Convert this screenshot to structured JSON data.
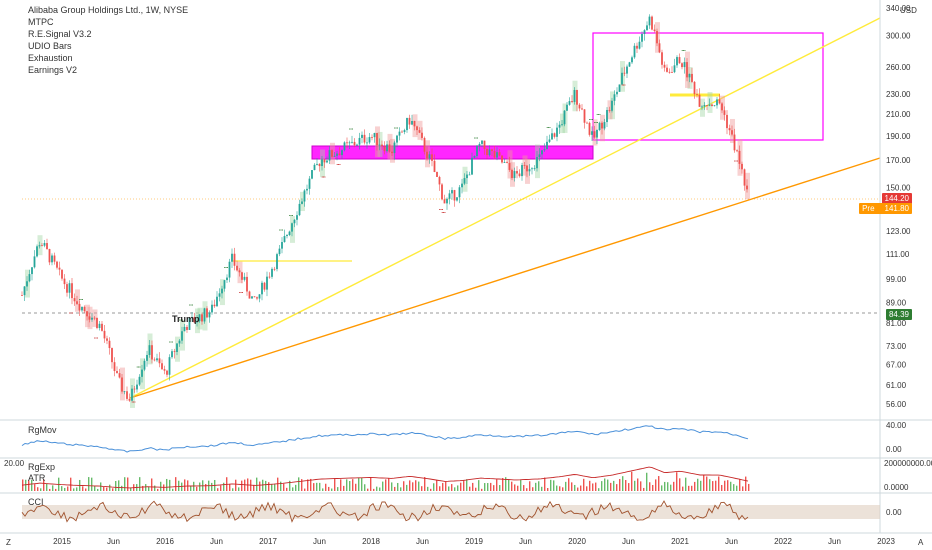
{
  "header": {
    "title": "Alibaba Group Holdings Ltd., 1W, NYSE",
    "currency": "USD",
    "indicators": [
      "MTPC",
      "R.E.Signal V3.2",
      "UDIO Bars",
      "Exhaustion",
      "Earnings V2"
    ]
  },
  "chart_data": {
    "type": "candlestick",
    "title": "Alibaba Group Holdings Ltd., 1W, NYSE",
    "y_scale": "log",
    "y_ticks": [
      340.0,
      300.0,
      260.0,
      230.0,
      210.0,
      190.0,
      170.0,
      150.0,
      123.0,
      111.0,
      99.0,
      89.0,
      81.0,
      73.0,
      67.0,
      61.0,
      56.0
    ],
    "x_ticks": [
      "2015",
      "Jun",
      "2016",
      "Jun",
      "2017",
      "Jun",
      "2018",
      "Jun",
      "2019",
      "Jun",
      "2020",
      "Jun",
      "2021",
      "Jun",
      "2022",
      "Jun",
      "2023"
    ],
    "price_labels": [
      {
        "value": "144.20",
        "color": "#e53935"
      },
      {
        "value": "141.80",
        "color": "#ff9800",
        "prefix": "Pre"
      },
      {
        "value": "84.39",
        "color": "#2e7d32"
      }
    ],
    "annotations": [
      {
        "text": "Trump"
      }
    ],
    "colors": {
      "up": "#26a69a",
      "down": "#ef5350",
      "box": "#ff00ff",
      "trend_yellow": "#ffeb3b",
      "trend_orange": "#ff9800"
    }
  },
  "panes": {
    "rgmov": {
      "label": "RgMov",
      "ticks": [
        "40.00",
        "0.00"
      ]
    },
    "rgexp": {
      "label": "RgExp",
      "sub_label": "ATR",
      "left_value": "20.00",
      "ticks": [
        "200000000.0000",
        "0.0000"
      ]
    },
    "cci": {
      "label": "CCI",
      "ticks": [
        "0.00"
      ]
    }
  },
  "footer": {
    "left": "Z",
    "right": "A"
  }
}
